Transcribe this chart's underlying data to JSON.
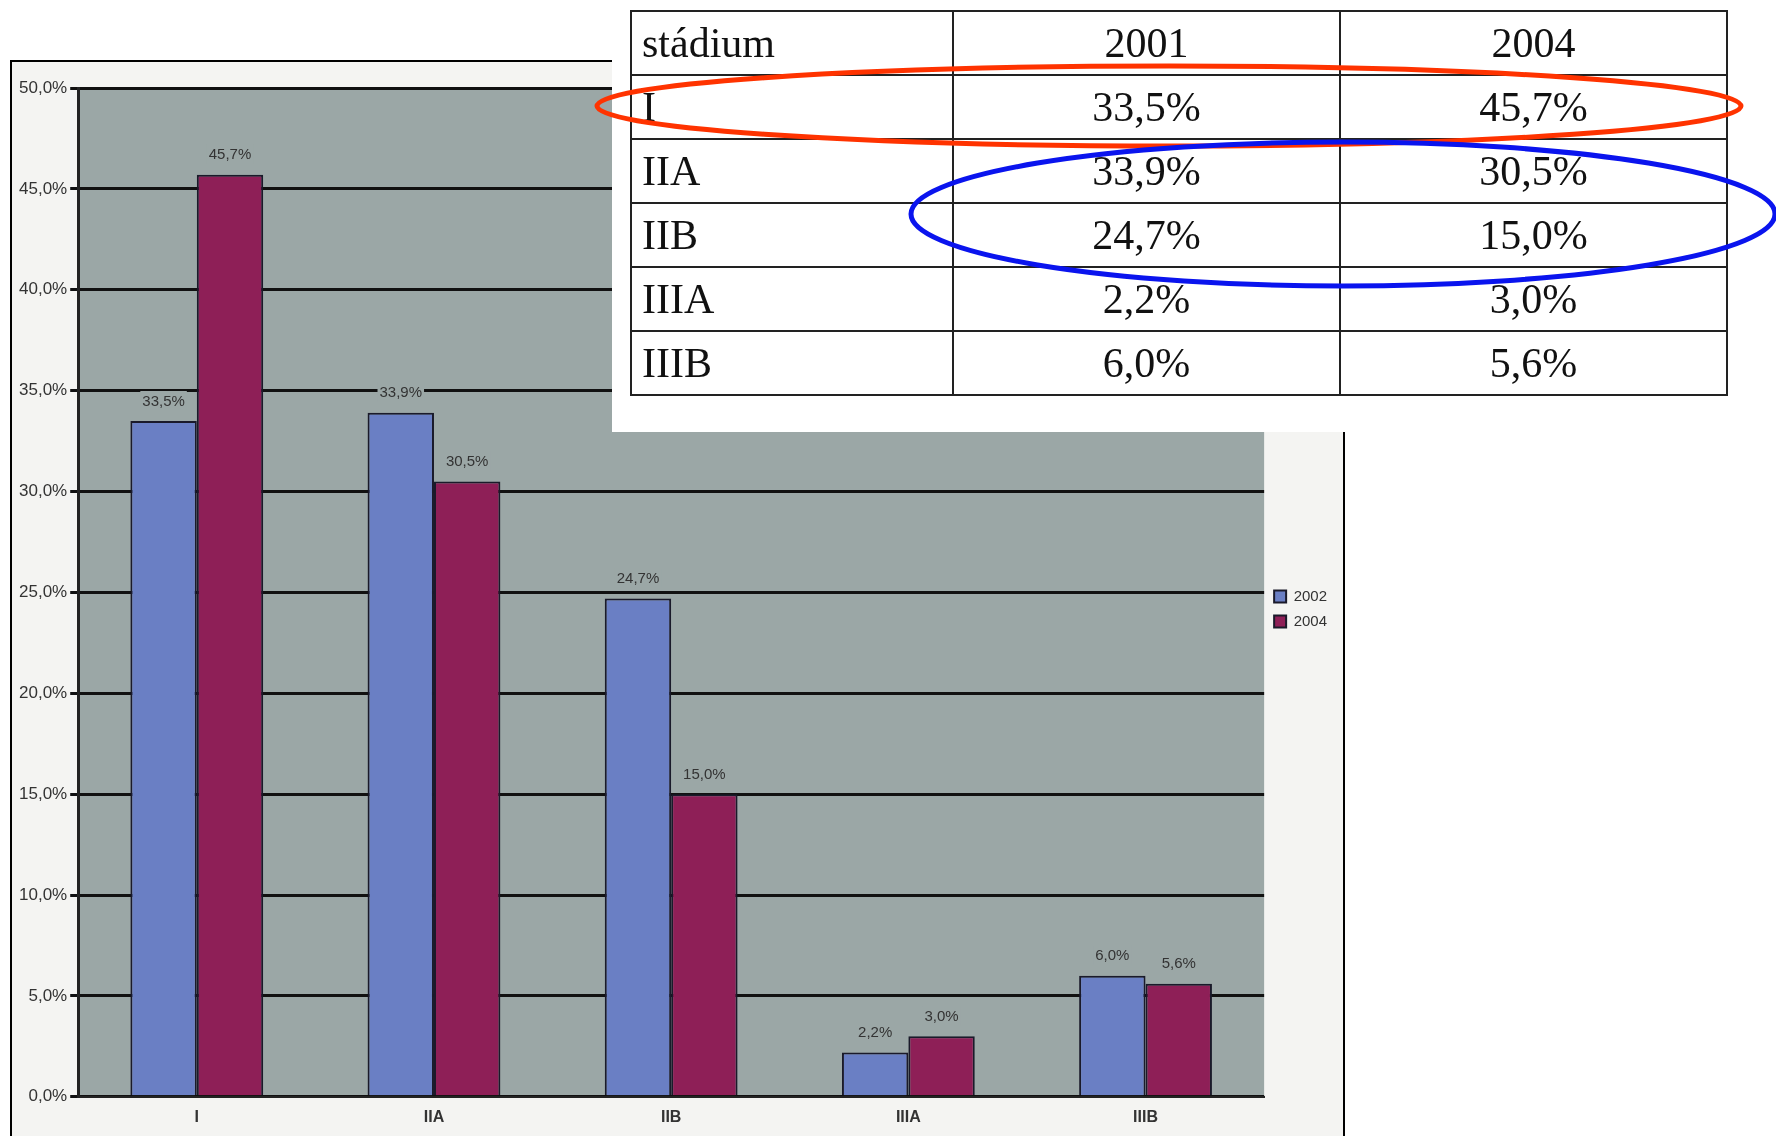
{
  "chart_data": {
    "type": "bar",
    "categories": [
      "I",
      "IIA",
      "IIB",
      "IIIA",
      "IIIB"
    ],
    "series": [
      {
        "name": "2002",
        "color": "#6a7fc4",
        "values": [
          33.5,
          33.9,
          24.7,
          2.2,
          6.0
        ],
        "value_labels": [
          "33,5%",
          "33,9%",
          "24,7%",
          "2,2%",
          "6,0%"
        ]
      },
      {
        "name": "2004",
        "color": "#8e1f57",
        "values": [
          45.7,
          30.5,
          15.0,
          3.0,
          5.6
        ],
        "value_labels": [
          "45,7%",
          "30,5%",
          "15,0%",
          "3,0%",
          "5,6%"
        ]
      }
    ],
    "ylim": [
      0,
      50
    ],
    "yticks": [
      {
        "value": 0,
        "label": "0,0%"
      },
      {
        "value": 5,
        "label": "5,0%"
      },
      {
        "value": 10,
        "label": "10,0%"
      },
      {
        "value": 15,
        "label": "15,0%"
      },
      {
        "value": 20,
        "label": "20,0%"
      },
      {
        "value": 25,
        "label": "25,0%"
      },
      {
        "value": 30,
        "label": "30,0%"
      },
      {
        "value": 35,
        "label": "35,0%"
      },
      {
        "value": 40,
        "label": "40,0%"
      },
      {
        "value": 45,
        "label": "45,0%"
      },
      {
        "value": 50,
        "label": "50,0%"
      }
    ],
    "grid": "y",
    "legend": "right",
    "annotations": [
      "stádium",
      "2001",
      "2004"
    ]
  }
}
